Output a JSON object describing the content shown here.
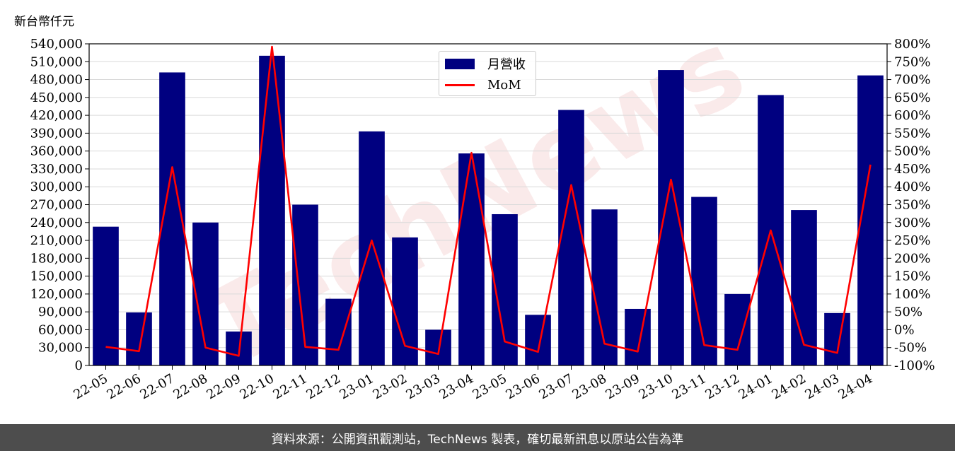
{
  "unit_label": "新台幣仟元",
  "watermark": "TechNews",
  "footer": "資料來源：公開資訊觀測站，TechNews 製表，確切最新訊息以原站公告為準",
  "colors": {
    "bar": "#000080",
    "line": "#ff0000",
    "footer_bg": "#4d4d4d",
    "watermark": "#f2c4c4"
  },
  "chart_data": {
    "type": "bar",
    "categories": [
      "22-05",
      "22-06",
      "22-07",
      "22-08",
      "22-09",
      "22-10",
      "22-11",
      "22-12",
      "23-01",
      "23-02",
      "23-03",
      "23-04",
      "23-05",
      "23-06",
      "23-07",
      "23-08",
      "23-09",
      "23-10",
      "23-11",
      "23-12",
      "24-01",
      "24-02",
      "24-03",
      "24-04"
    ],
    "series": [
      {
        "name": "月營收",
        "type": "bar",
        "axis": "left",
        "values": [
          233000,
          89000,
          492000,
          240000,
          57000,
          520000,
          270000,
          112000,
          393000,
          215000,
          60000,
          356000,
          254000,
          85000,
          429000,
          262000,
          95000,
          496000,
          283000,
          120000,
          454000,
          261000,
          88000,
          487000
        ]
      },
      {
        "name": "MoM",
        "type": "line",
        "axis": "right",
        "values": [
          -48,
          -60,
          455,
          -50,
          -73,
          792,
          -48,
          -56,
          250,
          -45,
          -68,
          495,
          -33,
          -62,
          405,
          -39,
          -61,
          420,
          -43,
          -56,
          278,
          -42,
          -65,
          462
        ]
      }
    ],
    "y_left": {
      "ylim": [
        0,
        540000
      ],
      "ticks": [
        0,
        30000,
        60000,
        90000,
        120000,
        150000,
        180000,
        210000,
        240000,
        270000,
        300000,
        330000,
        360000,
        390000,
        420000,
        450000,
        480000,
        510000,
        540000
      ],
      "tick_labels": [
        "0",
        "30,000",
        "60,000",
        "90,000",
        "120,000",
        "150,000",
        "180,000",
        "210,000",
        "240,000",
        "270,000",
        "300,000",
        "330,000",
        "360,000",
        "390,000",
        "420,000",
        "450,000",
        "480,000",
        "510,000",
        "540,000"
      ]
    },
    "y_right": {
      "ylim": [
        -100,
        800
      ],
      "ticks": [
        -100,
        -50,
        0,
        50,
        100,
        150,
        200,
        250,
        300,
        350,
        400,
        450,
        500,
        550,
        600,
        650,
        700,
        750,
        800
      ],
      "tick_labels": [
        "-100%",
        "-50%",
        "0%",
        "50%",
        "100%",
        "150%",
        "200%",
        "250%",
        "300%",
        "350%",
        "400%",
        "450%",
        "500%",
        "550%",
        "600%",
        "650%",
        "700%",
        "750%",
        "800%"
      ]
    },
    "grid": "horizontal",
    "legend_position": "top-center"
  }
}
